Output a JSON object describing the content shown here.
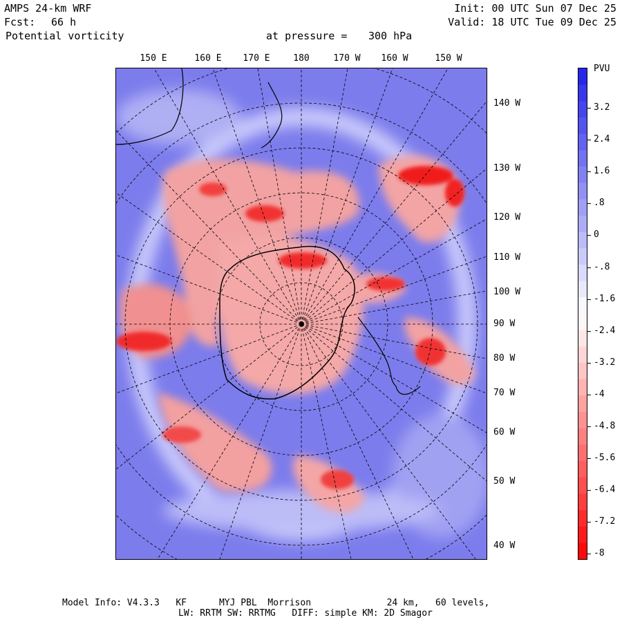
{
  "header": {
    "model": "AMPS 24-km WRF",
    "fcst_label": "Fcst:",
    "fcst_value": "66 h",
    "field": "Potential vorticity",
    "level_label": "at pressure =",
    "level_value": "300 hPa",
    "init": "Init: 00 UTC Sun 07 Dec 25",
    "valid": "Valid: 18 UTC Tue 09 Dec 25"
  },
  "map": {
    "lon_top": [
      "150 E",
      "160 E",
      "170 E",
      "180",
      "170 W",
      "160 W",
      "150 W"
    ],
    "lon_right": [
      "140 W",
      "130 W",
      "120 W",
      "110 W",
      "100 W",
      "90 W",
      "80 W",
      "70 W",
      "60 W",
      "50 W",
      "40 W"
    ]
  },
  "colorbar": {
    "title": "PVU",
    "labels": [
      "3.2",
      "2.4",
      "1.6",
      ".8",
      "0",
      "-.8",
      "-1.6",
      "-2.4",
      "-3.2",
      "-4",
      "-4.8",
      "-5.6",
      "-6.4",
      "-7.2",
      "-8"
    ],
    "colors": {
      "positive": "#3a3af0",
      "low_blue": "#8c8cf0",
      "white": "#ffffff",
      "light_red": "#f5b4b4",
      "red": "#ff1a1a"
    }
  },
  "footer": {
    "line1": "Model Info: V4.3.3   KF      MYJ PBL  Morrison              24 km,   60 levels,",
    "line2": "LW: RRTM SW: RRTMG   DIFF: simple KM: 2D Smagor"
  }
}
